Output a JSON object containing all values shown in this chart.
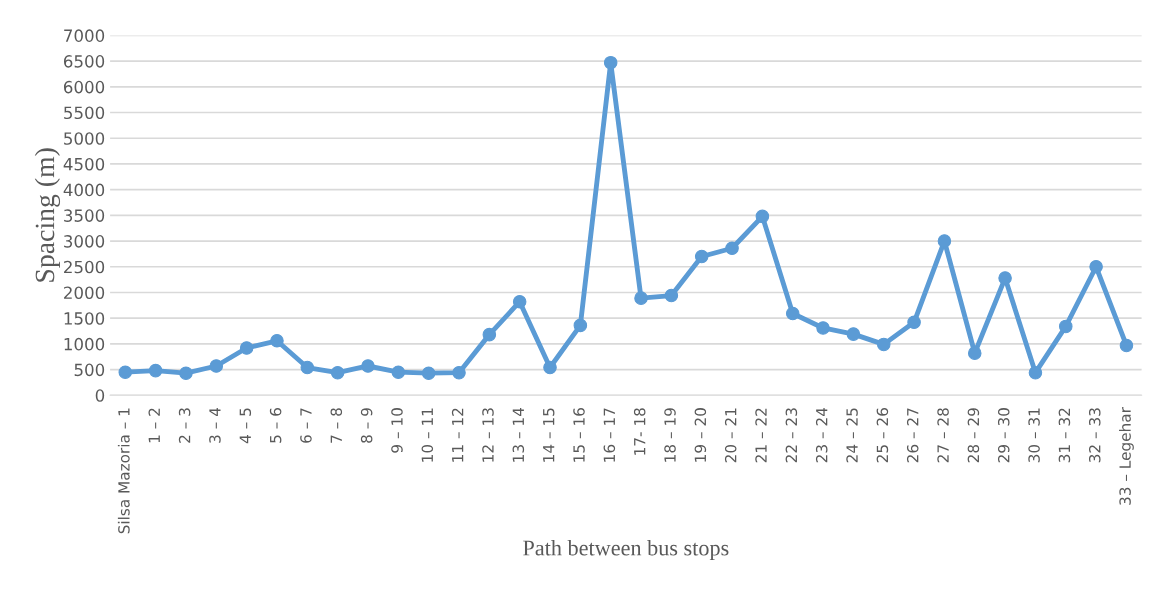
{
  "chart_data": {
    "type": "line",
    "xlabel": "Path between bus stops",
    "ylabel": "Spacing (m)",
    "categories": [
      "Silsa Mazoria – 1",
      "1 – 2",
      "2 – 3",
      "3 – 4",
      "4 – 5",
      "5 – 6",
      "6 – 7",
      "7 – 8",
      "8 – 9",
      "9 – 10",
      "10 – 11",
      "11 – 12",
      "12 – 13",
      "13 – 14",
      "14 – 15",
      "15 – 16",
      "16 – 17",
      "17- 18",
      "18 – 19",
      "19 – 20",
      "20 – 21",
      "21 – 22",
      "22 – 23",
      "23 – 24",
      "24 – 25",
      "25 – 26",
      "26 – 27",
      "27 – 28",
      "28 – 29",
      "29 – 30",
      "30 – 31",
      "31 – 32",
      "32 – 33",
      "33 – Legehar"
    ],
    "series": [
      {
        "color": "#5b9bd5",
        "values": [
          450,
          480,
          430,
          570,
          920,
          1060,
          540,
          440,
          570,
          450,
          430,
          440,
          1180,
          1820,
          540,
          1360,
          6470,
          1890,
          1940,
          2700,
          2860,
          3480,
          1590,
          1310,
          1190,
          990,
          1420,
          3000,
          820,
          2280,
          440,
          1340,
          2500,
          970
        ]
      }
    ],
    "ylim": [
      0,
      7000
    ],
    "yticks": [
      0,
      500,
      1000,
      1500,
      2000,
      2500,
      3000,
      3500,
      4000,
      4500,
      5000,
      5500,
      6000,
      6500,
      7000
    ],
    "grid": "y",
    "marker": "circle",
    "line_style": "solid"
  }
}
